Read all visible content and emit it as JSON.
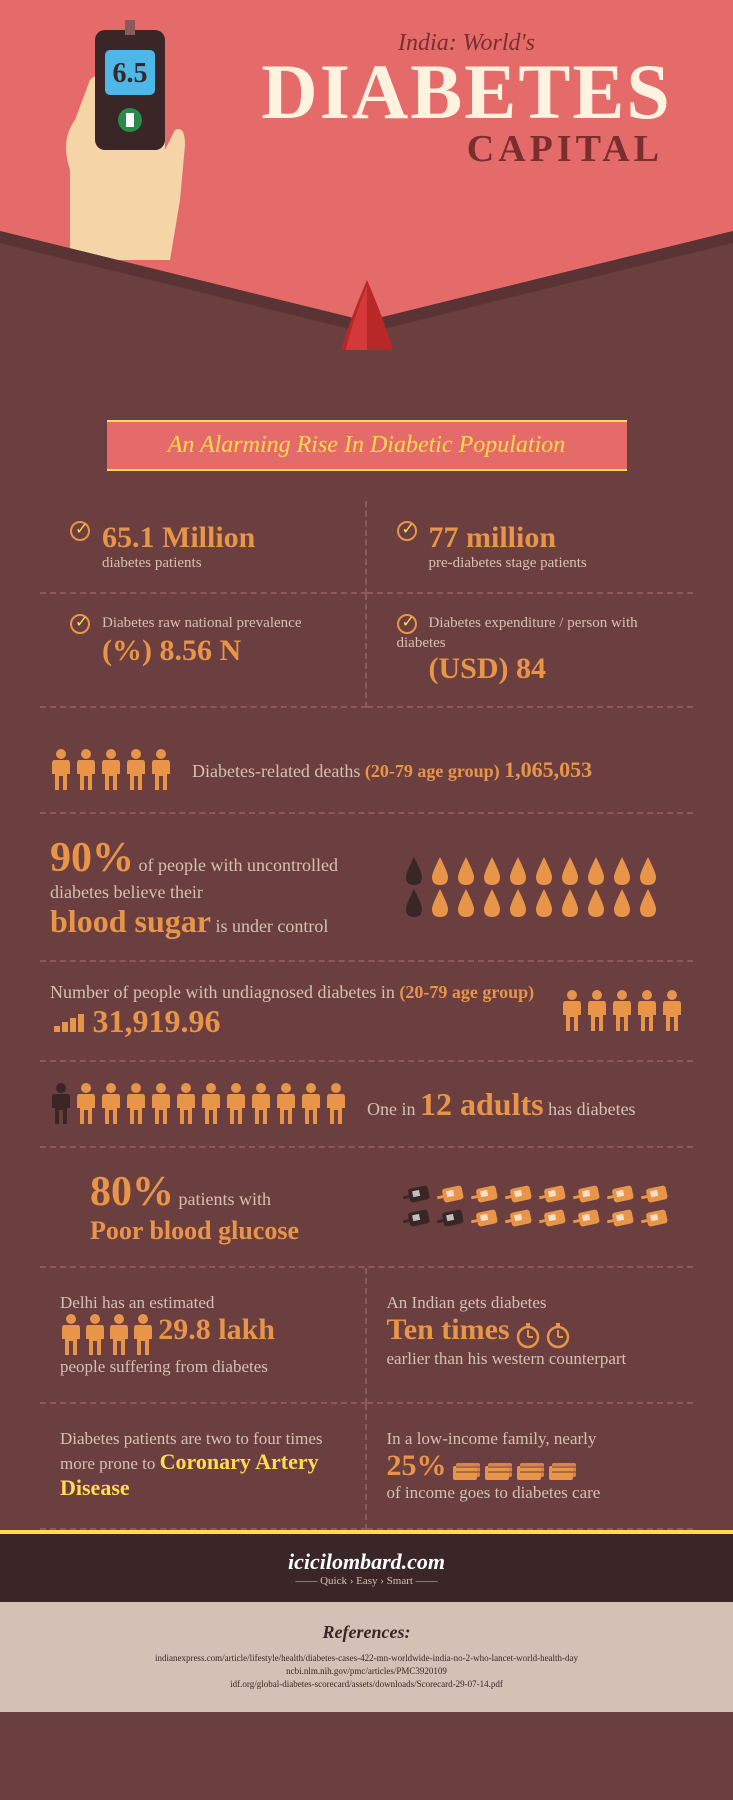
{
  "header": {
    "pretitle": "India: World's",
    "maintitle": "DIABETES",
    "subtitle": "CAPITAL",
    "meter_reading": "6.5",
    "colors": {
      "bg": "#e56b6b",
      "title": "#fff3e0",
      "pretitle": "#7a2e2e"
    }
  },
  "banner": {
    "text": "An Alarming Rise In Diabetic Population"
  },
  "stats": [
    {
      "value": "65.1 Million",
      "label": "diabetes patients",
      "label_pos": "bottom"
    },
    {
      "value": "77 million",
      "label": "pre-diabetes stage patients",
      "label_pos": "bottom"
    },
    {
      "value": "(%) 8.56 N",
      "label": "Diabetes raw national prevalence",
      "label_pos": "top"
    },
    {
      "value": "(USD) 84",
      "label": "Diabetes expenditure / person with diabetes",
      "label_pos": "top"
    }
  ],
  "deaths_row": {
    "text": "Diabetes-related deaths",
    "age_group": "(20-79 age group)",
    "value": "1,065,053",
    "people_count": 5,
    "people_color": "#e8954a"
  },
  "blood_sugar_row": {
    "percent": "90%",
    "text1": "of people with uncontrolled diabetes believe their",
    "highlight": "blood sugar",
    "text2": "is under control",
    "drops_total": 20,
    "drops_dark": 2,
    "drop_color_dark": "#3a2626",
    "drop_color_light": "#e8954a"
  },
  "undiagnosed_row": {
    "text": "Number of people with undiagnosed diabetes in",
    "age_group": "(20-79 age group)",
    "value": "31,919.96",
    "people_count": 5,
    "people_color": "#e8954a"
  },
  "adults_row": {
    "people_total": 12,
    "people_dark_index": 0,
    "people_color": "#e8954a",
    "people_dark_color": "#3a2626",
    "text1": "One in",
    "highlight": "12 adults",
    "text2": "has diabetes"
  },
  "glucose_row": {
    "percent": "80%",
    "text": "patients with",
    "highlight": "Poor blood glucose",
    "meters_total": 16,
    "meters_dark": 3,
    "meter_color_dark": "#3a2626",
    "meter_color_light": "#e8954a"
  },
  "bottom": [
    {
      "text1": "Delhi has an estimated",
      "highlight": "29.8 lakh",
      "text2": "people suffering from diabetes",
      "icon": "people",
      "icon_count": 4
    },
    {
      "text1": "An Indian gets diabetes",
      "highlight": "Ten times",
      "text2": "earlier than his western counterpart",
      "icon": "clock",
      "icon_count": 2
    },
    {
      "text1": "Diabetes patients are two to four times more prone to",
      "highlight_yellow": "Coronary Artery Disease",
      "text2": ""
    },
    {
      "text1": "In a low-income family, nearly",
      "highlight": "25%",
      "text2": "of income goes to diabetes care",
      "icon": "money",
      "icon_count": 4
    }
  ],
  "footer": {
    "brand": "icicilombard.com",
    "tagline": "—— Quick › Easy › Smart ——"
  },
  "references": {
    "title": "References:",
    "items": [
      "indianexpress.com/article/lifestyle/health/diabetes-cases-422-mn-worldwide-india-no-2-who-lancet-world-health-day",
      "ncbi.nlm.nih.gov/pmc/articles/PMC3920109",
      "idf.org/global-diabetes-scorecard/assets/downloads/Scorecard-29-07-14.pdf"
    ]
  },
  "colors": {
    "bg_main": "#6b3f3f",
    "orange": "#e8954a",
    "yellow": "#ffdb4d",
    "text_light": "#d4c0b5",
    "dark": "#3a2626"
  }
}
